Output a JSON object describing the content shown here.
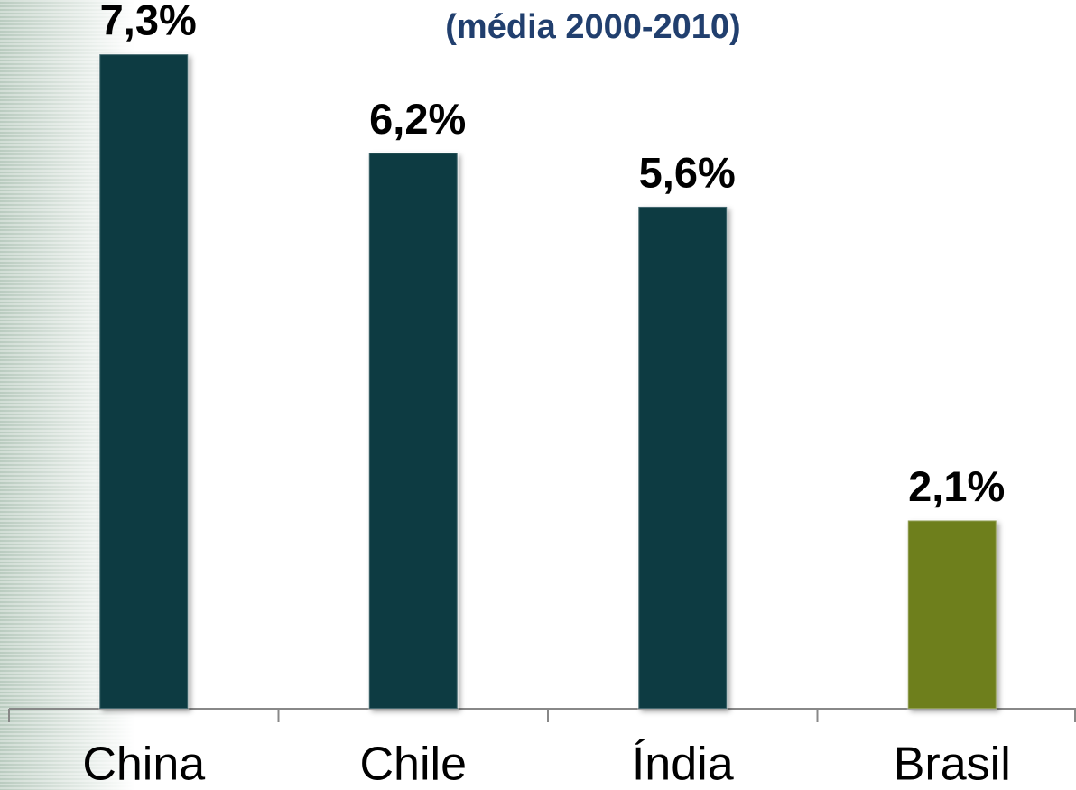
{
  "chart_data": {
    "type": "bar",
    "subtitle": "(média 2000-2010)",
    "categories": [
      "China",
      "Chile",
      "Índia",
      "Brasil"
    ],
    "values": [
      7.3,
      6.2,
      5.6,
      2.1
    ],
    "value_labels": [
      "7,3%",
      "6,2%",
      "5,6%",
      "2,1%"
    ],
    "colors": [
      "#083a42",
      "#083a42",
      "#083a42",
      "#6e7f1e"
    ]
  }
}
